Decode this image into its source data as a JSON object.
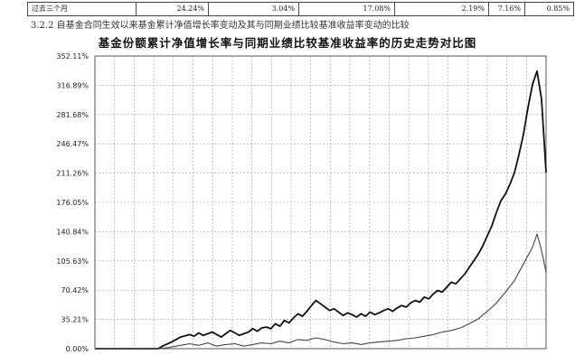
{
  "table": {
    "row_label": "过去三个月",
    "cells": [
      "24.24%",
      "3.04%",
      "17.08%",
      "2.19%",
      "7.16%",
      "0.85%"
    ]
  },
  "section_heading": "3.2.2  自基金合同生效以来基金累计净值增长率变动及其与同期业绩比较基准收益率变动的比较",
  "chart_data": {
    "type": "line",
    "title": "基金份额累计净值增长率与同期业绩比较基准收益率的历史走势对比图",
    "xlabel": "",
    "ylabel": "",
    "y_tick_labels": [
      "0.00%",
      "35.21%",
      "70.42%",
      "105.63%",
      "140.84%",
      "176.05%",
      "211.26%",
      "246.47%",
      "281.68%",
      "316.89%",
      "352.11%"
    ],
    "ylim": [
      0,
      352.11
    ],
    "x_tick_count": 23,
    "grid": true,
    "legend": "none",
    "x_index_range": [
      0,
      100
    ],
    "series": [
      {
        "color": "#111111",
        "values": [
          [
            0,
            0
          ],
          [
            6,
            0
          ],
          [
            10,
            0
          ],
          [
            14,
            0
          ],
          [
            15,
            3
          ],
          [
            17,
            8
          ],
          [
            19,
            14
          ],
          [
            21,
            17
          ],
          [
            22,
            15
          ],
          [
            23,
            19
          ],
          [
            24,
            16
          ],
          [
            26,
            20
          ],
          [
            28,
            14
          ],
          [
            29,
            18
          ],
          [
            30,
            22
          ],
          [
            31,
            19
          ],
          [
            32,
            16
          ],
          [
            34,
            20
          ],
          [
            35,
            24
          ],
          [
            36,
            21
          ],
          [
            37,
            25
          ],
          [
            38,
            26
          ],
          [
            39,
            24
          ],
          [
            40,
            30
          ],
          [
            41,
            27
          ],
          [
            42,
            34
          ],
          [
            43,
            31
          ],
          [
            44,
            37
          ],
          [
            45,
            42
          ],
          [
            46,
            39
          ],
          [
            47,
            45
          ],
          [
            48,
            52
          ],
          [
            49,
            58
          ],
          [
            50,
            54
          ],
          [
            51,
            50
          ],
          [
            52,
            46
          ],
          [
            53,
            48
          ],
          [
            54,
            44
          ],
          [
            55,
            40
          ],
          [
            56,
            43
          ],
          [
            57,
            41
          ],
          [
            58,
            38
          ],
          [
            59,
            42
          ],
          [
            60,
            39
          ],
          [
            61,
            44
          ],
          [
            62,
            41
          ],
          [
            63,
            43
          ],
          [
            64,
            46
          ],
          [
            65,
            48
          ],
          [
            66,
            45
          ],
          [
            67,
            49
          ],
          [
            68,
            52
          ],
          [
            69,
            50
          ],
          [
            70,
            55
          ],
          [
            71,
            58
          ],
          [
            72,
            56
          ],
          [
            73,
            62
          ],
          [
            74,
            60
          ],
          [
            75,
            66
          ],
          [
            76,
            70
          ],
          [
            77,
            68
          ],
          [
            78,
            74
          ],
          [
            79,
            80
          ],
          [
            80,
            78
          ],
          [
            81,
            84
          ],
          [
            82,
            90
          ],
          [
            83,
            98
          ],
          [
            84,
            106
          ],
          [
            85,
            114
          ],
          [
            86,
            124
          ],
          [
            87,
            136
          ],
          [
            88,
            148
          ],
          [
            89,
            164
          ],
          [
            90,
            178
          ],
          [
            91,
            186
          ],
          [
            92,
            198
          ],
          [
            93,
            212
          ],
          [
            94,
            234
          ],
          [
            95,
            258
          ],
          [
            96,
            290
          ],
          [
            97,
            318
          ],
          [
            98,
            334
          ],
          [
            99,
            300
          ],
          [
            100,
            212
          ]
        ]
      },
      {
        "color": "#444444",
        "values": [
          [
            0,
            0
          ],
          [
            6,
            0
          ],
          [
            10,
            0
          ],
          [
            14,
            0
          ],
          [
            16,
            1
          ],
          [
            19,
            4
          ],
          [
            21,
            6
          ],
          [
            23,
            4
          ],
          [
            25,
            7
          ],
          [
            27,
            3
          ],
          [
            29,
            5
          ],
          [
            31,
            6
          ],
          [
            33,
            3
          ],
          [
            35,
            5
          ],
          [
            37,
            7
          ],
          [
            39,
            6
          ],
          [
            41,
            9
          ],
          [
            43,
            7
          ],
          [
            45,
            11
          ],
          [
            47,
            10
          ],
          [
            49,
            13
          ],
          [
            51,
            11
          ],
          [
            53,
            8
          ],
          [
            55,
            6
          ],
          [
            57,
            7
          ],
          [
            59,
            5
          ],
          [
            61,
            7
          ],
          [
            63,
            8
          ],
          [
            65,
            9
          ],
          [
            67,
            10
          ],
          [
            69,
            12
          ],
          [
            71,
            13
          ],
          [
            73,
            15
          ],
          [
            75,
            17
          ],
          [
            77,
            20
          ],
          [
            79,
            22
          ],
          [
            81,
            25
          ],
          [
            83,
            30
          ],
          [
            85,
            36
          ],
          [
            87,
            45
          ],
          [
            89,
            55
          ],
          [
            91,
            68
          ],
          [
            93,
            82
          ],
          [
            95,
            102
          ],
          [
            97,
            122
          ],
          [
            98,
            138
          ],
          [
            99,
            118
          ],
          [
            100,
            92
          ]
        ]
      }
    ]
  }
}
